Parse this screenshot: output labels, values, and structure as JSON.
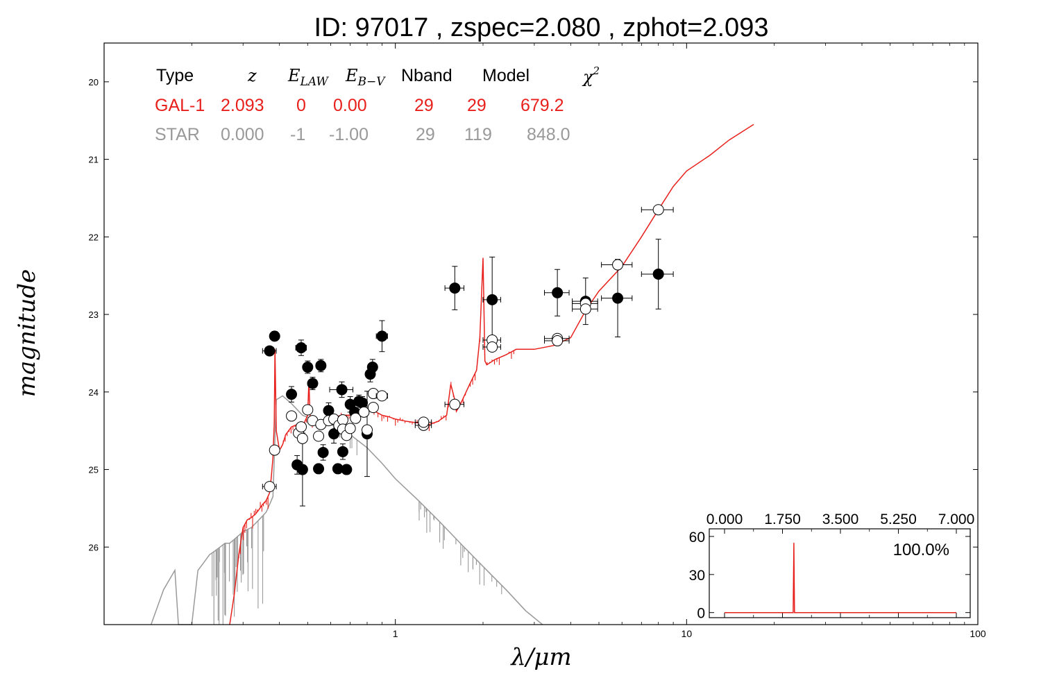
{
  "chart_data": {
    "type": "scatter",
    "title": "ID:  97017 , zspec=2.080 , zphot=2.093",
    "xlabel": "λ/μm",
    "ylabel": "magnitude",
    "xscale": "log",
    "xlim": [
      0.1,
      100
    ],
    "ylim": [
      27.0,
      19.5
    ],
    "y_inverted": true,
    "x_tick_labels": [
      "1",
      "10",
      "100"
    ],
    "x_ticks": [
      1,
      10,
      100
    ],
    "y_ticks": [
      20,
      21,
      22,
      23,
      24,
      25,
      26
    ],
    "y_tick_labels": [
      "20",
      "21",
      "22",
      "23",
      "24",
      "25",
      "26"
    ],
    "grid": false,
    "colors": {
      "galaxy": "#e8201c",
      "star": "#999999",
      "observed": "#000000",
      "model_points": "#ffffff"
    },
    "table": {
      "headers": [
        "Type",
        "z",
        "E_LAW",
        "E_B−V",
        "Nband",
        "Model",
        "χ2"
      ],
      "header_math": {
        "e_law_main": "E",
        "e_law_sub": "LAW",
        "e_bv_main": "E",
        "e_bv_sub": "B−V",
        "chi_main": "χ",
        "chi_sup": "2"
      },
      "rows": [
        {
          "type": "GAL-1",
          "z": "2.093",
          "e_law": "0",
          "e_bv": "0.00",
          "nband": "29",
          "model": "29",
          "chi2": "679.2"
        },
        {
          "type": "STAR",
          "z": "0.000",
          "e_law": "-1",
          "e_bv": "-1.00",
          "nband": "29",
          "model": "119",
          "chi2": "848.0"
        }
      ]
    },
    "observed": [
      {
        "x": 0.37,
        "y": 23.47,
        "xerr": 0.02,
        "yerr": 0.05
      },
      {
        "x": 0.385,
        "y": 23.28,
        "xerr": 0.01,
        "yerr": 0.06
      },
      {
        "x": 0.44,
        "y": 24.03,
        "xerr": 0.01,
        "yerr": 0.1
      },
      {
        "x": 0.46,
        "y": 24.94,
        "xerr": 0.01,
        "yerr": 0.12
      },
      {
        "x": 0.475,
        "y": 23.43,
        "xerr": 0.02,
        "yerr": 0.1
      },
      {
        "x": 0.48,
        "y": 25.0,
        "xerr": 0.01,
        "yerr": 0.47
      },
      {
        "x": 0.5,
        "y": 23.68,
        "xerr": 0.015,
        "yerr": 0.08
      },
      {
        "x": 0.52,
        "y": 23.89,
        "xerr": 0.01,
        "yerr": 0.08
      },
      {
        "x": 0.545,
        "y": 24.99,
        "xerr": 0.01,
        "yerr": 0.06
      },
      {
        "x": 0.555,
        "y": 23.66,
        "xerr": 0.02,
        "yerr": 0.08
      },
      {
        "x": 0.565,
        "y": 24.78,
        "xerr": 0.01,
        "yerr": 0.1
      },
      {
        "x": 0.59,
        "y": 24.24,
        "xerr": 0.02,
        "yerr": 0.1
      },
      {
        "x": 0.615,
        "y": 24.54,
        "xerr": 0.02,
        "yerr": 0.12
      },
      {
        "x": 0.635,
        "y": 24.99,
        "xerr": 0.01,
        "yerr": 0.06
      },
      {
        "x": 0.655,
        "y": 23.97,
        "xerr": 0.06,
        "yerr": 0.1
      },
      {
        "x": 0.66,
        "y": 24.77,
        "xerr": 0.01,
        "yerr": 0.1
      },
      {
        "x": 0.68,
        "y": 25.0,
        "xerr": 0.01,
        "yerr": 0.06
      },
      {
        "x": 0.7,
        "y": 24.16,
        "xerr": 0.02,
        "yerr": 0.1
      },
      {
        "x": 0.725,
        "y": 24.26,
        "xerr": 0.02,
        "yerr": 0.1
      },
      {
        "x": 0.75,
        "y": 24.12,
        "xerr": 0.02,
        "yerr": 0.08
      },
      {
        "x": 0.77,
        "y": 24.14,
        "xerr": 0.02,
        "yerr": 0.08
      },
      {
        "x": 0.8,
        "y": 24.54,
        "xerr": 0.02,
        "yerr": 0.55
      },
      {
        "x": 0.82,
        "y": 23.77,
        "xerr": 0.02,
        "yerr": 0.1
      },
      {
        "x": 0.835,
        "y": 23.68,
        "xerr": 0.02,
        "yerr": 0.1
      },
      {
        "x": 0.9,
        "y": 23.28,
        "xerr": 0.04,
        "yerr": 0.2
      },
      {
        "x": 1.6,
        "y": 22.66,
        "xerr": 0.12,
        "yerr": 0.28
      },
      {
        "x": 2.15,
        "y": 22.81,
        "xerr": 0.15,
        "yerr": 0.55
      },
      {
        "x": 3.6,
        "y": 22.72,
        "xerr": 0.35,
        "yerr": 0.3
      },
      {
        "x": 4.5,
        "y": 22.83,
        "xerr": 0.45,
        "yerr": 0.3
      },
      {
        "x": 5.8,
        "y": 22.79,
        "xerr": 0.7,
        "yerr": 0.5
      },
      {
        "x": 8.0,
        "y": 22.48,
        "xerr": 1.0,
        "yerr": 0.45
      }
    ],
    "model_points": [
      {
        "x": 0.37,
        "y": 25.22,
        "xerr": 0.02
      },
      {
        "x": 0.385,
        "y": 24.75,
        "xerr": 0.01
      },
      {
        "x": 0.44,
        "y": 24.31,
        "xerr": 0.01
      },
      {
        "x": 0.465,
        "y": 24.53,
        "xerr": 0.01
      },
      {
        "x": 0.475,
        "y": 24.45,
        "xerr": 0.01
      },
      {
        "x": 0.48,
        "y": 24.6,
        "xerr": 0.01
      },
      {
        "x": 0.5,
        "y": 24.23,
        "xerr": 0.015
      },
      {
        "x": 0.52,
        "y": 24.37,
        "xerr": 0.01
      },
      {
        "x": 0.545,
        "y": 24.57,
        "xerr": 0.01
      },
      {
        "x": 0.555,
        "y": 24.42,
        "xerr": 0.02
      },
      {
        "x": 0.59,
        "y": 24.37,
        "xerr": 0.02
      },
      {
        "x": 0.615,
        "y": 24.35,
        "xerr": 0.02
      },
      {
        "x": 0.64,
        "y": 24.43,
        "xerr": 0.01
      },
      {
        "x": 0.66,
        "y": 24.36,
        "xerr": 0.02
      },
      {
        "x": 0.66,
        "y": 24.48,
        "xerr": 0.01
      },
      {
        "x": 0.68,
        "y": 24.56,
        "xerr": 0.01
      },
      {
        "x": 0.7,
        "y": 24.47,
        "xerr": 0.02
      },
      {
        "x": 0.73,
        "y": 24.34,
        "xerr": 0.02
      },
      {
        "x": 0.78,
        "y": 24.26,
        "xerr": 0.02
      },
      {
        "x": 0.8,
        "y": 24.49,
        "xerr": 0.02
      },
      {
        "x": 0.84,
        "y": 24.2,
        "xerr": 0.02
      },
      {
        "x": 0.84,
        "y": 24.02,
        "xerr": 0.02
      },
      {
        "x": 0.9,
        "y": 24.05,
        "xerr": 0.04
      },
      {
        "x": 1.25,
        "y": 24.43,
        "xerr": 0.08
      },
      {
        "x": 1.25,
        "y": 24.39,
        "xerr": 0.08
      },
      {
        "x": 1.6,
        "y": 24.16,
        "xerr": 0.12
      },
      {
        "x": 2.15,
        "y": 23.33,
        "xerr": 0.15
      },
      {
        "x": 2.15,
        "y": 23.42,
        "xerr": 0.15
      },
      {
        "x": 3.6,
        "y": 23.31,
        "xerr": 0.35
      },
      {
        "x": 3.6,
        "y": 23.34,
        "xerr": 0.35
      },
      {
        "x": 4.5,
        "y": 22.86,
        "xerr": 0.45
      },
      {
        "x": 4.5,
        "y": 22.93,
        "xerr": 0.45
      },
      {
        "x": 5.8,
        "y": 22.36,
        "xerr": 0.7
      },
      {
        "x": 8.0,
        "y": 21.65,
        "xerr": 1.0
      }
    ],
    "galaxy_model_line": {
      "x": [
        0.27,
        0.28,
        0.29,
        0.3,
        0.31,
        0.32,
        0.33,
        0.34,
        0.35,
        0.36,
        0.37,
        0.375,
        0.38,
        0.384,
        0.386,
        0.39,
        0.4,
        0.41,
        0.42,
        0.43,
        0.44,
        0.46,
        0.48,
        0.5,
        0.505,
        0.51,
        0.52,
        0.55,
        0.6,
        0.65,
        0.7,
        0.75,
        0.8,
        0.85,
        0.9,
        0.95,
        1.0,
        1.1,
        1.2,
        1.3,
        1.4,
        1.5,
        1.55,
        1.6,
        1.62,
        1.65,
        1.7,
        1.8,
        1.9,
        1.95,
        2.0,
        2.03,
        2.06,
        2.2,
        2.4,
        2.6,
        3.0,
        3.5,
        4.0,
        4.5,
        5.0,
        6.0,
        7.0,
        8.0,
        9.0,
        10.0,
        12.0,
        14.0,
        17.0
      ],
      "y": [
        27.0,
        26.6,
        26.1,
        25.75,
        25.65,
        25.62,
        25.58,
        25.52,
        25.45,
        25.4,
        25.3,
        25.1,
        24.85,
        24.4,
        23.45,
        24.5,
        24.75,
        24.68,
        24.55,
        24.5,
        24.45,
        24.42,
        24.45,
        24.3,
        23.85,
        24.35,
        24.38,
        24.38,
        24.35,
        24.3,
        24.3,
        24.25,
        24.23,
        24.25,
        24.3,
        24.32,
        24.35,
        24.38,
        24.4,
        24.42,
        24.38,
        24.3,
        23.9,
        24.1,
        24.25,
        24.2,
        24.1,
        23.9,
        23.72,
        23.3,
        22.27,
        23.6,
        23.65,
        23.58,
        23.52,
        23.45,
        23.45,
        23.4,
        23.3,
        22.95,
        22.7,
        22.38,
        22.0,
        21.65,
        21.35,
        21.15,
        20.95,
        20.75,
        20.55
      ]
    },
    "star_model_line": {
      "x": [
        0.145,
        0.16,
        0.175,
        0.18,
        0.185,
        0.2,
        0.21,
        0.22,
        0.23,
        0.24,
        0.25,
        0.26,
        0.27,
        0.28,
        0.29,
        0.3,
        0.32,
        0.34,
        0.36,
        0.37,
        0.38,
        0.39,
        0.41,
        0.44,
        0.48,
        0.52,
        0.56,
        0.6,
        0.7,
        0.8,
        0.9,
        1.0,
        1.2,
        1.4,
        1.7,
        2.0,
        2.4,
        2.8,
        3.2
      ],
      "y": [
        27.0,
        26.55,
        26.3,
        27.0,
        27.0,
        27.0,
        26.3,
        26.2,
        26.1,
        26.05,
        26.0,
        25.95,
        25.95,
        25.9,
        25.85,
        25.8,
        25.75,
        25.65,
        25.55,
        25.45,
        25.35,
        24.1,
        24.05,
        24.15,
        24.3,
        24.35,
        24.38,
        24.42,
        24.55,
        24.72,
        24.92,
        25.12,
        25.4,
        25.65,
        25.98,
        26.25,
        26.55,
        26.82,
        27.05
      ]
    },
    "inset": {
      "x_tick_labels": [
        "0.000",
        "1.750",
        "3.500",
        "5.250",
        "7.000"
      ],
      "y_tick_labels": [
        "60",
        "30",
        "0"
      ],
      "xlim": [
        0,
        7
      ],
      "ylim": [
        -4,
        66
      ],
      "annotation": "100.0%",
      "pdf_peak_x": 2.093,
      "pdf_peak_y": 55
    }
  }
}
